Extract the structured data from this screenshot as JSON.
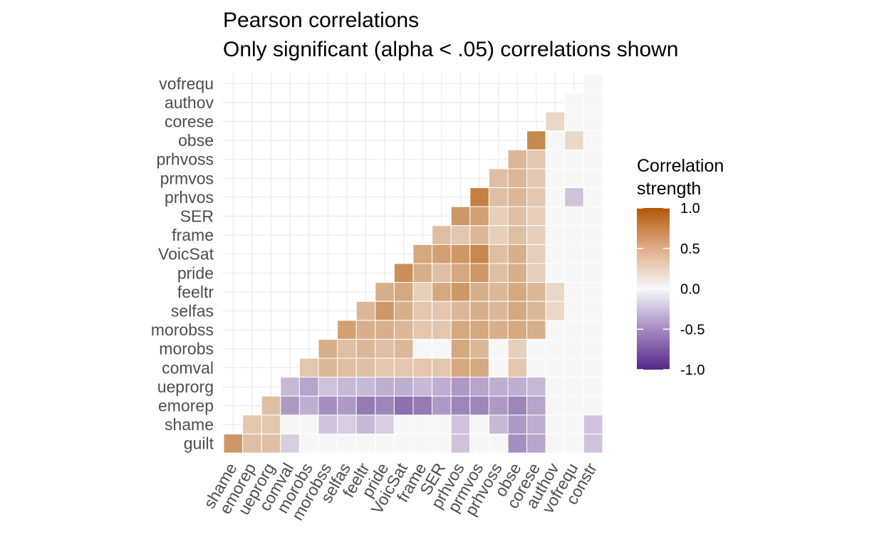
{
  "chart_data": {
    "type": "heatmap",
    "title_lines": [
      "Pearson correlations",
      "Only significant (alpha < .05) correlations shown"
    ],
    "y_categories": [
      "vofrequ",
      "authov",
      "corese",
      "obse",
      "prhvoss",
      "prmvos",
      "prhvos",
      "SER",
      "frame",
      "VoicSat",
      "pride",
      "feeltr",
      "selfas",
      "morobss",
      "morobs",
      "comval",
      "ueprorg",
      "emorep",
      "shame",
      "guilt"
    ],
    "x_categories": [
      "shame",
      "emorep",
      "ueprorg",
      "comval",
      "morobs",
      "morobss",
      "selfas",
      "feeltr",
      "pride",
      "VoicSat",
      "frame",
      "SER",
      "prhvos",
      "prmvos",
      "prhvoss",
      "obse",
      "corese",
      "authov",
      "vofrequ",
      "constr"
    ],
    "values": [
      [
        null,
        null,
        null,
        null,
        null,
        null,
        null,
        null,
        null,
        null,
        null,
        null,
        null,
        null,
        null,
        null,
        null,
        null,
        null,
        0
      ],
      [
        null,
        null,
        null,
        null,
        null,
        null,
        null,
        null,
        null,
        null,
        null,
        null,
        null,
        null,
        null,
        null,
        null,
        null,
        0,
        0
      ],
      [
        null,
        null,
        null,
        null,
        null,
        null,
        null,
        null,
        null,
        null,
        null,
        null,
        null,
        null,
        null,
        null,
        null,
        0.2,
        0,
        0
      ],
      [
        null,
        null,
        null,
        null,
        null,
        null,
        null,
        null,
        null,
        null,
        null,
        null,
        null,
        null,
        null,
        null,
        0.7,
        0,
        0.2,
        0
      ],
      [
        null,
        null,
        null,
        null,
        null,
        null,
        null,
        null,
        null,
        null,
        null,
        null,
        null,
        null,
        null,
        0.4,
        0.3,
        0,
        0,
        0
      ],
      [
        null,
        null,
        null,
        null,
        null,
        null,
        null,
        null,
        null,
        null,
        null,
        null,
        null,
        null,
        0.35,
        0.4,
        0.3,
        0,
        0,
        0
      ],
      [
        null,
        null,
        null,
        null,
        null,
        null,
        null,
        null,
        null,
        null,
        null,
        null,
        null,
        0.75,
        0.35,
        0.4,
        0.3,
        0,
        -0.25,
        0
      ],
      [
        null,
        null,
        null,
        null,
        null,
        null,
        null,
        null,
        null,
        null,
        null,
        null,
        0.6,
        0.55,
        0.25,
        0.35,
        0.25,
        0,
        0,
        0
      ],
      [
        null,
        null,
        null,
        null,
        null,
        null,
        null,
        null,
        null,
        null,
        null,
        0.35,
        0.3,
        0.4,
        0.25,
        0.35,
        0.25,
        0,
        0,
        0
      ],
      [
        null,
        null,
        null,
        null,
        null,
        null,
        null,
        null,
        null,
        null,
        0.5,
        0.55,
        0.6,
        0.7,
        0.35,
        0.45,
        0.25,
        0,
        0,
        0
      ],
      [
        null,
        null,
        null,
        null,
        null,
        null,
        null,
        null,
        null,
        0.65,
        0.45,
        0.35,
        0.5,
        0.6,
        0.35,
        0.45,
        0.25,
        0,
        0,
        0
      ],
      [
        null,
        null,
        null,
        null,
        null,
        null,
        null,
        null,
        0.45,
        0.5,
        0.25,
        0.5,
        0.6,
        0.45,
        0.4,
        0.5,
        0.4,
        0.2,
        0,
        0
      ],
      [
        null,
        null,
        null,
        null,
        null,
        null,
        null,
        0.4,
        0.6,
        0.45,
        0.3,
        0.3,
        0.4,
        0.45,
        0.4,
        0.5,
        0.4,
        0.2,
        0,
        0
      ],
      [
        null,
        null,
        null,
        null,
        null,
        null,
        0.55,
        0.45,
        0.45,
        0.4,
        0.3,
        0.3,
        0.5,
        0.5,
        0.45,
        0.5,
        0.45,
        0,
        0,
        0
      ],
      [
        null,
        null,
        null,
        null,
        null,
        0.45,
        0.35,
        0.4,
        0.35,
        0.4,
        0,
        0,
        0.5,
        0.4,
        0,
        0.25,
        0,
        0,
        0,
        0
      ],
      [
        null,
        null,
        null,
        null,
        0.3,
        0.4,
        0.35,
        0.35,
        0.3,
        0.3,
        0.3,
        0.3,
        0.5,
        0.5,
        0,
        0.3,
        0,
        0,
        0,
        0
      ],
      [
        null,
        null,
        null,
        -0.3,
        -0.4,
        -0.25,
        -0.3,
        -0.3,
        -0.35,
        -0.35,
        -0.3,
        -0.35,
        -0.45,
        -0.4,
        -0.35,
        -0.35,
        -0.3,
        0,
        0,
        0
      ],
      [
        null,
        null,
        0.35,
        -0.45,
        -0.35,
        -0.5,
        -0.45,
        -0.6,
        -0.55,
        -0.65,
        -0.6,
        -0.45,
        -0.55,
        -0.55,
        -0.45,
        -0.55,
        -0.4,
        0,
        0,
        0
      ],
      [
        null,
        0.3,
        0.3,
        0,
        0,
        -0.25,
        -0.2,
        -0.3,
        -0.2,
        0,
        0,
        0,
        -0.25,
        0,
        -0.3,
        -0.45,
        -0.35,
        0,
        0,
        -0.25
      ],
      [
        0.6,
        0.35,
        0.35,
        -0.2,
        0,
        0,
        0,
        0,
        0,
        0,
        0,
        0,
        -0.25,
        0,
        0,
        -0.5,
        -0.4,
        0,
        0,
        -0.25
      ]
    ],
    "scale": {
      "low": -1.0,
      "mid": 0.0,
      "high": 1.0,
      "low_color": "#542788",
      "mid_color": "#f7f7f7",
      "high_color": "#b35806"
    },
    "legend": {
      "title_lines": [
        "Correlation",
        "strength"
      ],
      "breaks": [
        1.0,
        0.5,
        0.0,
        -0.5,
        -1.0
      ],
      "labels": [
        "1.0",
        "0.5",
        "0.0",
        "-0.5",
        "-1.0"
      ],
      "position": "right"
    },
    "grid": true
  }
}
